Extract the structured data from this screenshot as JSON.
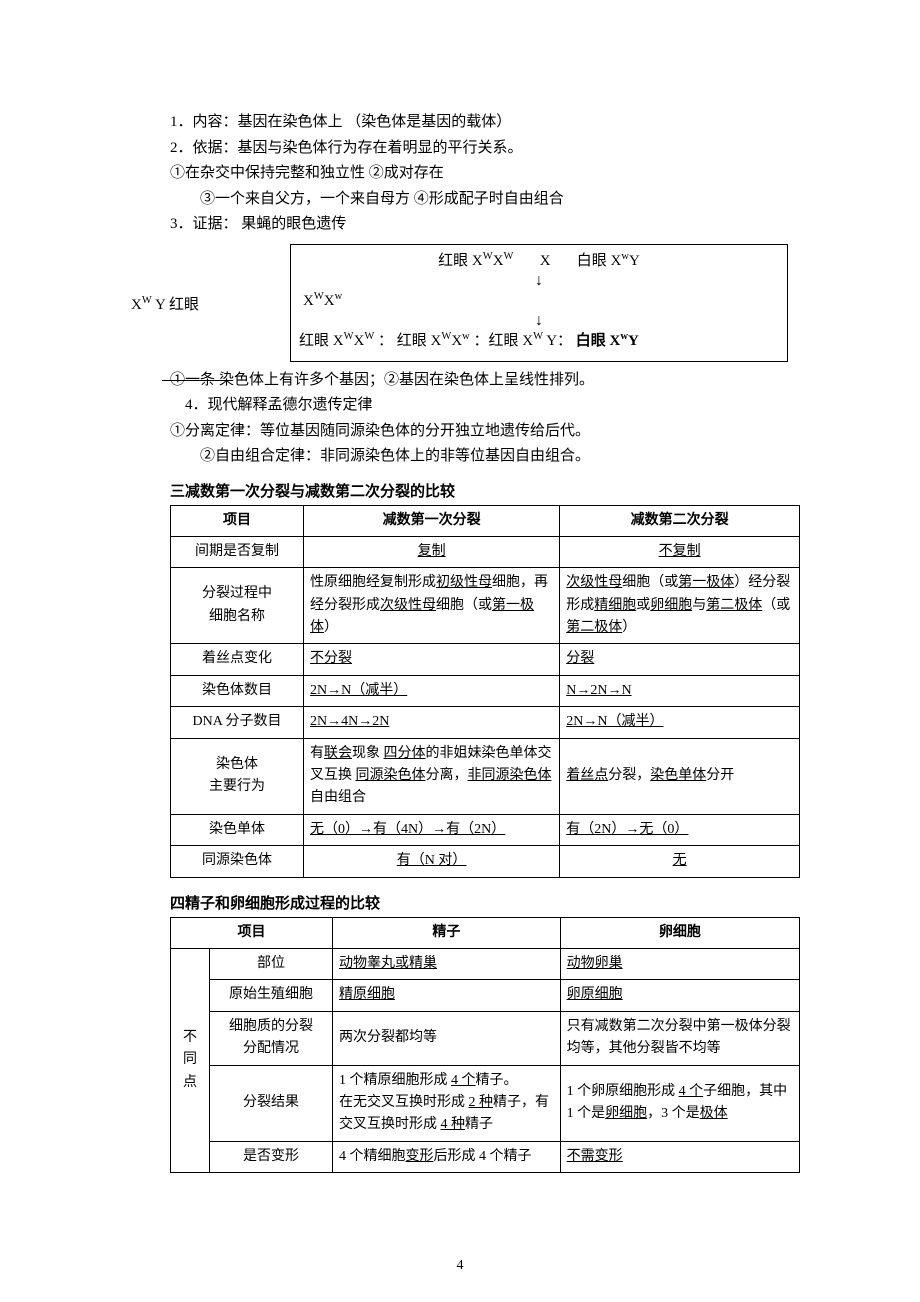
{
  "intro": {
    "l1": "1．内容：基因在染色体上 （染色体是基因的载体）",
    "l2": "2．依据：基因与染色体行为存在着明显的平行关系。",
    "l3": "①在杂交中保持完整和独立性   ②成对存在",
    "l4": "③一个来自父方，一个来自母方 ④形成配子时自由组合",
    "l5": "3．证据：  果蝇的眼色遗传"
  },
  "cross": {
    "p_red_label": "红眼 ",
    "p_red_geno_pre": "X",
    "p_red_geno_sup1": "W",
    "p_red_geno_mid": "X",
    "p_red_geno_sup2": "W",
    "x": "X",
    "p_white_label": "白眼 X",
    "p_white_sup": "w",
    "p_white_y": "Y",
    "side_pre": "X",
    "side_sup": "W",
    "side_rest": " Y   红眼",
    "f1_pre": "X",
    "f1_sup1": "W",
    "f1_mid": "X",
    "f1_sup2": "w",
    "b1": "红眼 X",
    "b1s": "W",
    "b1m": "X",
    "b1s2": "W",
    "sep": " ：",
    "b2": "红眼 X",
    "b2s": "W",
    "b2m": "X",
    "b2s2": "w",
    "b3": "：红眼 X",
    "b3s": "W",
    "b3y": " Y：",
    "b4": "白眼 X",
    "b4s": "w",
    "b4y": "Y"
  },
  "notes": {
    "n1a": "①一条",
    "n1b": "染色体上有许多个基因；②基因在染色体上呈线性排列。",
    "n2": "4．现代解释孟德尔遗传定律",
    "n3": "①分离定律：等位基因随同源染色体的分开独立地遗传给后代。",
    "n4": "②自由组合定律：非同源染色体上的非等位基因自由组合。"
  },
  "sec3": {
    "title": "三减数第一次分裂与减数第二次分裂的比较",
    "head": [
      "项目",
      "减数第一次分裂",
      "减数第二次分裂"
    ],
    "rows": [
      {
        "k": "间期是否复制",
        "a_ctr": true,
        "a": "<span class='u'>复制</span>",
        "b_ctr": true,
        "b": "<span class='u'>不复制</span>"
      },
      {
        "k": "分裂过程中<br>细胞名称",
        "a": "性原细胞经复制形成<span class='u'>初级性母</span>细胞，再经分裂形成<span class='u'>次级性母</span>细胞（或<span class='u'>第一极体</span>）",
        "b": "<span class='u'>次级性母</span>细胞（或<span class='u'>第一极体</span>）经分裂形成<span class='u'>精细胞</span>或<span class='u'>卵细胞</span>与<span class='u'>第二极体</span>（或<span class='u'>第二极体</span>）"
      },
      {
        "k": "着丝点变化",
        "a": "<span class='u'>不分裂</span>",
        "b": "<span class='u'>分裂</span>"
      },
      {
        "k": "染色体数目",
        "a": "<span class='u'>2N→N（减半）</span>",
        "b": "<span class='u'>N→2N→N</span>"
      },
      {
        "k": "DNA 分子数目",
        "a": "<span class='u'>2N→4N→2N</span>",
        "b": "<span class='u'>2N→N（减半）</span>"
      },
      {
        "k": "染色体<br>主要行为",
        "a": "有<span class='u'>联会</span>现象 <span class='u'>四分体</span>的非姐妹染色单体交叉互换 <span class='u'>同源染色体</span>分离，<span class='u'>非同源染色体</span>自由组合",
        "b": "<span class='u'>着丝点</span>分裂，<span class='u'>染色单体</span>分开"
      },
      {
        "k": "染色单体",
        "a": "<span class='u'>无（0）→有（4N）→有（2N）</span>",
        "b": "<span class='u'>有（2N）→无（0）</span>"
      },
      {
        "k": "同源染色体",
        "a_ctr": true,
        "a": "<span class='u'>有（N 对）</span>",
        "b_ctr": true,
        "b": "<span class='u'>无</span>"
      }
    ]
  },
  "sec4": {
    "title": "四精子和卵细胞形成过程的比较",
    "head": [
      "项目",
      "精子",
      "卵细胞"
    ],
    "vlabel": "不<br>同<br>点",
    "rows": [
      {
        "k": "部位",
        "a": "<span class='u'>动物睾丸或精巢</span>",
        "b": "<span class='u'>动物卵巢</span>"
      },
      {
        "k": "原始生殖细胞",
        "a": "<span class='u'>精原细胞</span>",
        "b": "<span class='u'>卵原细胞</span>"
      },
      {
        "k": "细胞质的分裂<br>分配情况",
        "a": "两次分裂都均等",
        "b": "只有减数第二次分裂中第一极体分裂均等，其他分裂皆不均等"
      },
      {
        "k": "分裂结果",
        "a": "1 个精原细胞形成 <span class='u'>4 个</span>精子。<br>在无交叉互换时形成 <span class='u'>2 种</span>精子，有交叉互换时形成 <span class='u'>4 种</span>精子",
        "b": "1 个卵原细胞形成 <span class='u'>4 个</span>子细胞，其中 1 个是<span class='u'>卵细胞</span>，3 个是<span class='u'>极体</span>"
      },
      {
        "k": "是否变形",
        "a": "4 个精细胞<span class='u'>变形</span>后形成 4 个精子",
        "b": "<span class='u'>不需变形</span>"
      }
    ]
  },
  "page_num": "4"
}
